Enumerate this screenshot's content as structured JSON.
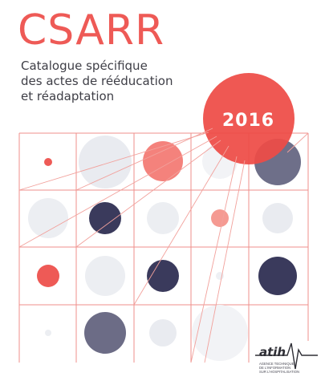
{
  "cover": {
    "title": "CSARR",
    "subtitle_lines": [
      "Catalogue spécifique",
      "des actes de rééducation",
      "et réadaptation"
    ],
    "year": "2016"
  },
  "logo": {
    "name": "atih",
    "tagline_lines": [
      "AGENCE TECHNIQUE",
      "DE L'INFORMATION",
      "SUR L'HOSPITALISATION"
    ],
    "icon": "heartbeat-line-icon"
  },
  "colors": {
    "accent_red": "#ee5a56",
    "navy": "#3a3a5c",
    "grid_line": "#ef7f7b",
    "light_grey": "#e9ebf0"
  }
}
